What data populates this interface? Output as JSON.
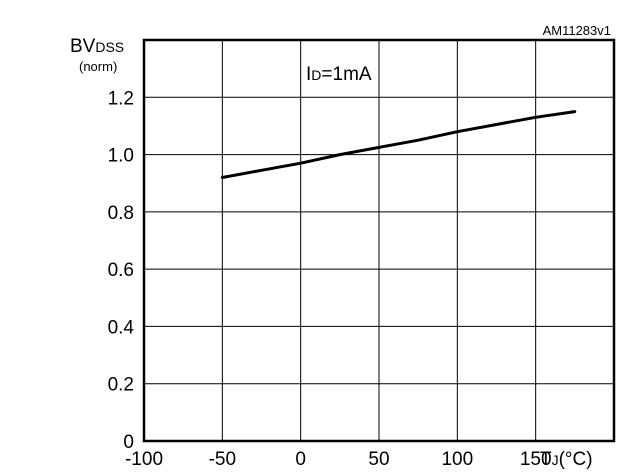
{
  "figure_id": "AM11283v1",
  "chart_data": {
    "type": "line",
    "title": "",
    "xlabel": {
      "main": "T",
      "sub": "J",
      "unit": "(°C)"
    },
    "ylabel": {
      "main": "BV",
      "sub": "DSS",
      "note": "(norm)"
    },
    "annotation": {
      "main": "I",
      "sub": "D",
      "rest": "=1mA"
    },
    "xlim": [
      -100,
      200
    ],
    "ylim": [
      0,
      1.4
    ],
    "x_ticks": [
      -100,
      -50,
      0,
      50,
      100,
      150
    ],
    "x_tick_labels": [
      "-100",
      "-50",
      "0",
      "50",
      "100",
      "150"
    ],
    "y_ticks": [
      0,
      0.2,
      0.4,
      0.6,
      0.8,
      1.0,
      1.2
    ],
    "y_tick_labels": [
      "0",
      "0.2",
      "0.4",
      "0.6",
      "0.8",
      "1.0",
      "1.2"
    ],
    "grid": true,
    "series": [
      {
        "x": [
          -50,
          -25,
          0,
          25,
          50,
          75,
          100,
          125,
          150,
          175
        ],
        "y": [
          0.92,
          0.945,
          0.97,
          1.0,
          1.025,
          1.05,
          1.08,
          1.105,
          1.13,
          1.15
        ]
      }
    ]
  }
}
